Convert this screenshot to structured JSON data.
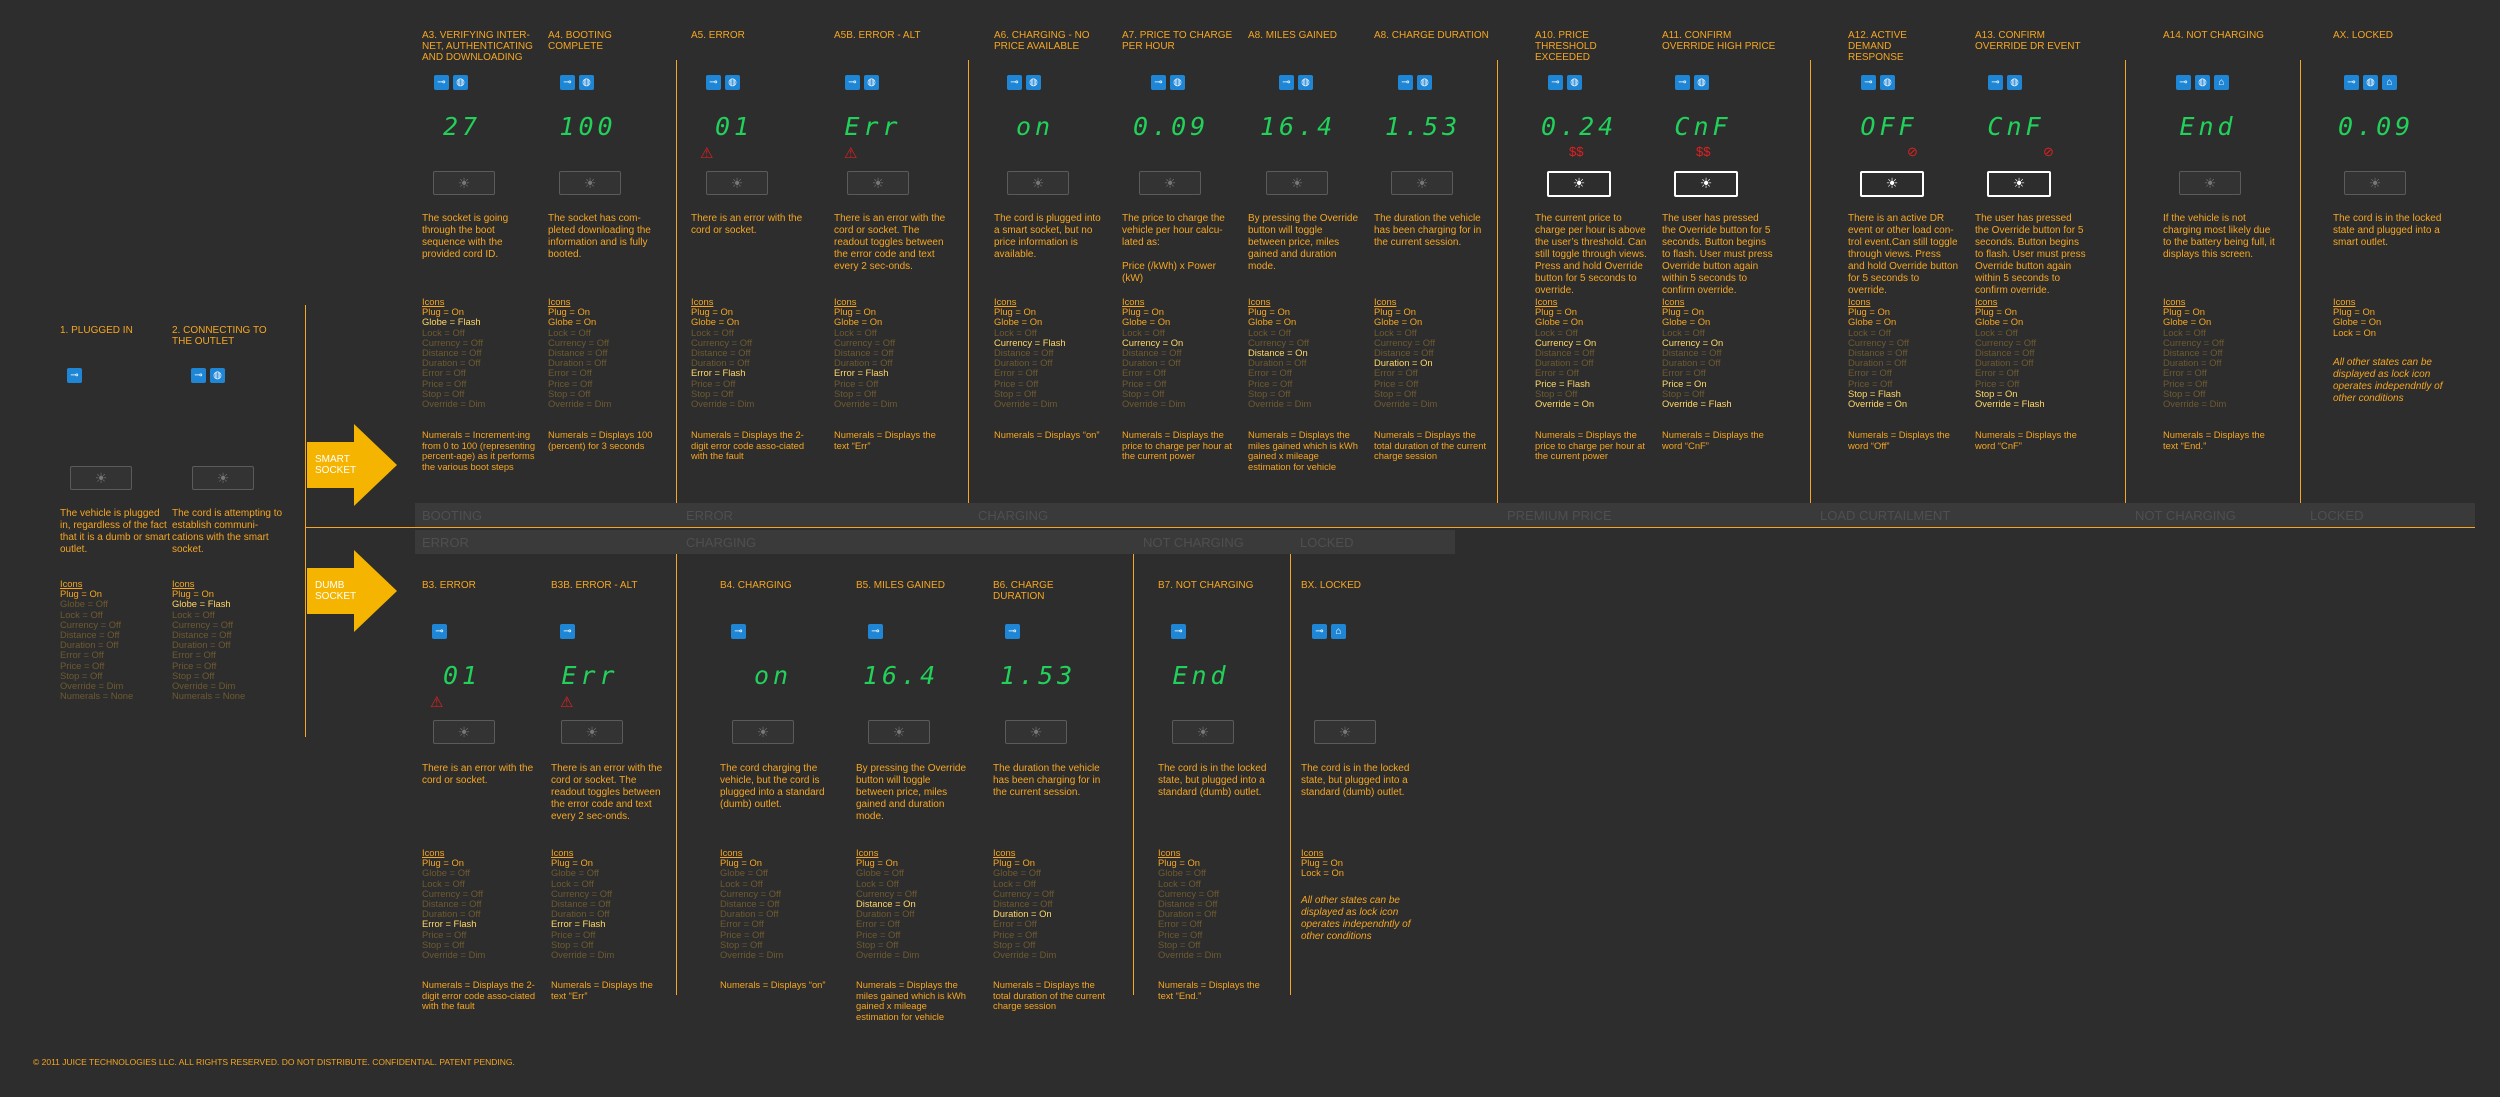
{
  "footer": "© 2011 JUICE TECHNOLOGIES LLC. ALL RIGHTS RESERVED. DO NOT DISTRIBUTE. CONFIDENTIAL. PATENT PENDING.",
  "rows": {
    "smart": "SMART SOCKET",
    "dumb": "DUMB SOCKET"
  },
  "bands": {
    "top": [
      "BOOTING",
      "ERROR",
      "CHARGING",
      "PREMIUM PRICE",
      "LOAD CURTAILMENT",
      "NOT CHARGING",
      "LOCKED"
    ],
    "bottom": [
      "ERROR",
      "CHARGING",
      "NOT CHARGING",
      "LOCKED"
    ]
  },
  "common_note": "All other states can be displayed as lock icon operates independntly of other conditions",
  "states": {
    "s1": {
      "title": "1. PLUGGED IN",
      "desc": "The vehicle is plugged in, regardless of the fact that it is a dumb or smart outlet.",
      "icons": "Icons",
      "plug": "Plug     = On",
      "globe": "Globe    = Off",
      "lock": "Lock     = Off",
      "currency": "Currency = Off",
      "distance": "Distance = Off",
      "duration": "Duration = Off",
      "error": "Error    = Off",
      "price": "Price    = Off",
      "stop": "Stop     = Off",
      "override": "Override = Dim",
      "numerals": "Numerals = None"
    },
    "s2": {
      "title": "2. CONNECTING TO THE OUTLET",
      "desc": "The cord is attempting to establish communi-cations with the smart socket.",
      "icons": "Icons",
      "plug": "Plug     = On",
      "globe": "Globe    = Flash",
      "lock": "Lock     = Off",
      "currency": "Currency = Off",
      "distance": "Distance = Off",
      "duration": "Duration = Off",
      "error": "Error    = Off",
      "price": "Price    = Off",
      "stop": "Stop     = Off",
      "override": "Override = Dim",
      "numerals": "Numerals = None"
    },
    "a3": {
      "title": "A3. VERIFYING INTER-NET, AUTHENTICATING AND DOWNLOADING",
      "display": "27",
      "desc": "The socket is going through the boot sequence with the provided cord ID.",
      "icons": "Icons",
      "plug": "Plug     = On",
      "globe": "Globe    = Flash",
      "lock": "Lock     = Off",
      "currency": "Currency = Off",
      "distance": "Distance = Off",
      "duration": "Duration = Off",
      "error": "Error    = Off",
      "price": "Price    = Off",
      "stop": "Stop     = Off",
      "override": "Override = Dim",
      "numerals": "Numerals = Increment-ing from 0 to 100 (representing percent-age) as it performs the various boot steps"
    },
    "a4": {
      "title": "A4. BOOTING COMPLETE",
      "display": "100",
      "desc": "The socket has com-pleted downloading the information and is fully booted.",
      "icons": "Icons",
      "plug": "Plug     = On",
      "globe": "Globe    = On",
      "lock": "Lock     = Off",
      "currency": "Currency = Off",
      "distance": "Distance = Off",
      "duration": "Duration = Off",
      "error": "Error    = Off",
      "price": "Price    = Off",
      "stop": "Stop     = Off",
      "override": "Override = Dim",
      "numerals": "Numerals = Displays 100 (percent) for 3 seconds"
    },
    "a5": {
      "title": "A5. ERROR",
      "display": "01",
      "desc": "There is an error with the cord or socket.",
      "icons": "Icons",
      "plug": "Plug     = On",
      "globe": "Globe    = On",
      "lock": "Lock     = Off",
      "currency": "Currency = Off",
      "distance": "Distance = Off",
      "duration": "Duration = Off",
      "error": "Error    = Flash",
      "price": "Price    = Off",
      "stop": "Stop     = Off",
      "override": "Override = Dim",
      "numerals": "Numerals = Displays the 2-digit error code asso-ciated with the fault"
    },
    "a5b": {
      "title": "A5B. ERROR - ALT",
      "display": "Err",
      "desc": "There is an error with the cord or socket. The readout toggles between the error code and text every 2 sec-onds.",
      "icons": "Icons",
      "plug": "Plug     = On",
      "globe": "Globe    = On",
      "lock": "Lock     = Off",
      "currency": "Currency = Off",
      "distance": "Distance = Off",
      "duration": "Duration = Off",
      "error": "Error    = Flash",
      "price": "Price    = Off",
      "stop": "Stop     = Off",
      "override": "Override = Dim",
      "numerals": "Numerals = Displays the text “Err”"
    },
    "a6": {
      "title": "A6. CHARGING - NO PRICE AVAILABLE",
      "display": "on",
      "desc": "The cord is plugged into a smart socket, but no price information is available.",
      "icons": "Icons",
      "plug": "Plug     = On",
      "globe": "Globe    = On",
      "lock": "Lock     = Off",
      "currency": "Currency = Flash",
      "distance": "Distance = Off",
      "duration": "Duration = Off",
      "error": "Error    = Off",
      "price": "Price    = Off",
      "stop": "Stop     = Off",
      "override": "Override = Dim",
      "numerals": "Numerals = Displays “on”"
    },
    "a7": {
      "title": "A7. PRICE TO CHARGE PER HOUR",
      "display": "0.09",
      "desc": "The price to charge the vehicle per hour calcu-lated as:",
      "formula": "Price (/kWh) x Power (kW)",
      "icons": "Icons",
      "plug": "Plug     = On",
      "globe": "Globe    = On",
      "lock": "Lock     = Off",
      "currency": "Currency = On",
      "distance": "Distance = Off",
      "duration": "Duration = Off",
      "error": "Error    = Off",
      "price": "Price    = Off",
      "stop": "Stop     = Off",
      "override": "Override = Dim",
      "numerals": "Numerals = Displays the price to charge per hour at the current power"
    },
    "a8m": {
      "title": "A8. MILES GAINED",
      "display": "16.4",
      "desc": "By pressing the Override button will toggle between price, miles gained and duration mode.",
      "icons": "Icons",
      "plug": "Plug     = On",
      "globe": "Globe    = On",
      "lock": "Lock     = Off",
      "currency": "Currency = Off",
      "distance": "Distance = On",
      "duration": "Duration = Off",
      "error": "Error    = Off",
      "price": "Price    = Off",
      "stop": "Stop     = Off",
      "override": "Override = Dim",
      "numerals": "Numerals = Displays the miles gained which is kWh gained x mileage estimation for vehicle"
    },
    "a8d": {
      "title": "A8. CHARGE DURATION",
      "display": "1.53",
      "desc": "The duration the vehicle has been charging for in the current session.",
      "icons": "Icons",
      "plug": "Plug     = On",
      "globe": "Globe    = On",
      "lock": "Lock     = Off",
      "currency": "Currency = Off",
      "distance": "Distance = Off",
      "duration": "Duration = On",
      "error": "Error    = Off",
      "price": "Price    = Off",
      "stop": "Stop     = Off",
      "override": "Override = Dim",
      "numerals": "Numerals = Displays the total duration of the current charge session"
    },
    "a10": {
      "title": "A10. PRICE THRESHOLD EXCEEDED",
      "display": "0.24",
      "desc": "The current price to charge per hour is above the user’s threshold. Can still toggle through views. Press and hold Override button for 5 seconds to override.",
      "icons": "Icons",
      "plug": "Plug     = On",
      "globe": "Globe    = On",
      "lock": "Lock     = Off",
      "currency": "Currency = On",
      "distance": "Distance = Off",
      "duration": "Duration = Off",
      "error": "Error    = Off",
      "price": "Price    = Flash",
      "stop": "Stop     = Off",
      "override": "Override = On",
      "numerals": "Numerals = Displays the price to charge per hour at the current power"
    },
    "a11": {
      "title": "A11. CONFIRM OVERRIDE HIGH PRICE",
      "display": "CnF",
      "desc": "The user has pressed the Override button for 5 seconds. Button begins to flash. User must press Override button again within 5 seconds to confirm override.",
      "icons": "Icons",
      "plug": "Plug     = On",
      "globe": "Globe    = On",
      "lock": "Lock     = Off",
      "currency": "Currency = On",
      "distance": "Distance = Off",
      "duration": "Duration = Off",
      "error": "Error    = Off",
      "price": "Price    = On",
      "stop": "Stop     = Off",
      "override": "Override = Flash",
      "numerals": "Numerals = Displays the word “CnF”"
    },
    "a12": {
      "title": "A12. ACTIVE DEMAND RESPONSE",
      "display": "OFF",
      "desc": "There is an active DR event or other load con-trol event.Can still toggle through views. Press and hold Override button for 5 seconds to override.",
      "icons": "Icons",
      "plug": "Plug     = On",
      "globe": "Globe    = On",
      "lock": "Lock     = Off",
      "currency": "Currency = Off",
      "distance": "Distance = Off",
      "duration": "Duration = Off",
      "error": "Error    = Off",
      "price": "Price    = Off",
      "stop": "Stop     = Flash",
      "override": "Override = On",
      "numerals": "Numerals = Displays the word “Off”"
    },
    "a13": {
      "title": "A13. CONFIRM OVERRIDE DR EVENT",
      "display": "CnF",
      "desc": "The user has pressed the Override button for 5 seconds. Button begins to flash. User must press Override button again within 5 seconds to confirm override.",
      "icons": "Icons",
      "plug": "Plug     = On",
      "globe": "Globe    = On",
      "lock": "Lock     = Off",
      "currency": "Currency = Off",
      "distance": "Distance = Off",
      "duration": "Duration = Off",
      "error": "Error    = Off",
      "price": "Price    = Off",
      "stop": "Stop     = On",
      "override": "Override = Flash",
      "numerals": "Numerals = Displays the word “CnF”"
    },
    "a14": {
      "title": "A14. NOT CHARGING",
      "display": "End",
      "desc": "If the vehicle is not charging most likely due to the battery being full, it displays this screen.",
      "icons": "Icons",
      "plug": "Plug     = On",
      "globe": "Globe    = On",
      "lock": "Lock     = Off",
      "currency": "Currency = Off",
      "distance": "Distance = Off",
      "duration": "Duration = Off",
      "error": "Error    = Off",
      "price": "Price    = Off",
      "stop": "Stop     = Off",
      "override": "Override = Dim",
      "numerals": "Numerals = Displays the text “End.”"
    },
    "ax": {
      "title": "AX. LOCKED",
      "display": "0.09",
      "desc": "The cord is in the locked state and plugged into a smart outlet.",
      "icons": "Icons",
      "plug": "Plug     = On",
      "globe": "Globe    = On",
      "lock": "Lock     = On"
    },
    "b3": {
      "title": "B3. ERROR",
      "display": "01",
      "desc": "There is an error with the cord or socket.",
      "icons": "Icons",
      "plug": "Plug     = On",
      "globe": "Globe    = Off",
      "lock": "Lock     = Off",
      "currency": "Currency = Off",
      "distance": "Distance = Off",
      "duration": "Duration = Off",
      "error": "Error    = Flash",
      "price": "Price    = Off",
      "stop": "Stop     = Off",
      "override": "Override = Dim",
      "numerals": "Numerals = Displays the 2-digit error code asso-ciated with the fault"
    },
    "b3b": {
      "title": "B3B. ERROR - ALT",
      "display": "Err",
      "desc": "There is an error with the cord or socket. The readout toggles between the error code and text every 2 sec-onds.",
      "icons": "Icons",
      "plug": "Plug     = On",
      "globe": "Globe    = Off",
      "lock": "Lock     = Off",
      "currency": "Currency = Off",
      "distance": "Distance = Off",
      "duration": "Duration = Off",
      "error": "Error    = Flash",
      "price": "Price    = Off",
      "stop": "Stop     = Off",
      "override": "Override = Dim",
      "numerals": "Numerals = Displays the text “Err”"
    },
    "b4": {
      "title": "B4. CHARGING",
      "display": "on",
      "desc": "The cord charging the vehicle, but the cord is plugged into a standard (dumb) outlet.",
      "icons": "Icons",
      "plug": "Plug     = On",
      "globe": "Globe    = Off",
      "lock": "Lock     = Off",
      "currency": "Currency = Off",
      "distance": "Distance = Off",
      "duration": "Duration = Off",
      "error": "Error    = Off",
      "price": "Price    = Off",
      "stop": "Stop     = Off",
      "override": "Override = Dim",
      "numerals": "Numerals = Displays “on”"
    },
    "b5": {
      "title": "B5. MILES GAINED",
      "display": "16.4",
      "desc": "By pressing the Override button will toggle between price, miles gained and duration mode.",
      "icons": "Icons",
      "plug": "Plug     = On",
      "globe": "Globe    = Off",
      "lock": "Lock     = Off",
      "currency": "Currency = Off",
      "distance": "Distance = On",
      "duration": "Duration = Off",
      "error": "Error    = Off",
      "price": "Price    = Off",
      "stop": "Stop     = Off",
      "override": "Override = Dim",
      "numerals": "Numerals = Displays the miles gained which is kWh gained x mileage estimation for vehicle"
    },
    "b6": {
      "title": "B6. CHARGE DURATION",
      "display": "1.53",
      "desc": "The duration the vehicle has been charging for in the current session.",
      "icons": "Icons",
      "plug": "Plug     = On",
      "globe": "Globe    = Off",
      "lock": "Lock     = Off",
      "currency": "Currency = Off",
      "distance": "Distance = Off",
      "duration": "Duration = On",
      "error": "Error    = Off",
      "price": "Price    = Off",
      "stop": "Stop     = Off",
      "override": "Override = Dim",
      "numerals": "Numerals = Displays the total duration of the current charge session"
    },
    "b7": {
      "title": "B7. NOT CHARGING",
      "display": "End",
      "desc": "The cord is in the locked state, but plugged into a standard (dumb) outlet.",
      "icons": "Icons",
      "plug": "Plug     = On",
      "globe": "Globe    = Off",
      "lock": "Lock     = Off",
      "currency": "Currency = Off",
      "distance": "Distance = Off",
      "duration": "Duration = Off",
      "error": "Error    = Off",
      "price": "Price    = Off",
      "stop": "Stop     = Off",
      "override": "Override = Dim",
      "numerals": "Numerals = Displays the text “End.”"
    },
    "bx": {
      "title": "BX. LOCKED",
      "desc": "The cord is in the locked state, but plugged into a standard (dumb) outlet.",
      "icons": "Icons",
      "plug": "Plug     = On",
      "lock": "Lock     = On"
    }
  },
  "colors": {
    "background": "#2d2d2d",
    "accent": "#f5a623",
    "dim": "#6e5a30",
    "display": "#22d15a",
    "icon": "#1f86d6",
    "error": "#e02020"
  }
}
